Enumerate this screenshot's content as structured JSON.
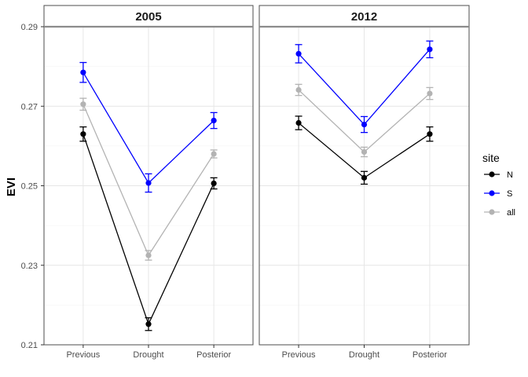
{
  "chart_data": {
    "type": "line",
    "ylabel": "EVI",
    "ylim": [
      0.21,
      0.29
    ],
    "y_ticks": [
      0.21,
      0.23,
      0.25,
      0.27,
      0.29
    ],
    "y_tick_labels": [
      "0.21",
      "0.23",
      "0.25",
      "0.27",
      "0.29"
    ],
    "categories": [
      "Previous",
      "Drought",
      "Posterior"
    ],
    "grid": true,
    "error_bars": true,
    "legend": {
      "title": "site",
      "position": "right"
    },
    "panels": [
      {
        "title": "2005",
        "series": [
          {
            "name": "N",
            "color": "#000000",
            "values": [
              0.263,
              0.2152,
              0.2506
            ],
            "lower": [
              0.2612,
              0.2136,
              0.2492
            ],
            "upper": [
              0.2648,
              0.2168,
              0.252
            ]
          },
          {
            "name": "S",
            "color": "#0000ff",
            "values": [
              0.2785,
              0.2507,
              0.2664
            ],
            "lower": [
              0.276,
              0.2484,
              0.2644
            ],
            "upper": [
              0.281,
              0.253,
              0.2684
            ]
          },
          {
            "name": "all",
            "color": "#b3b3b3",
            "values": [
              0.2705,
              0.2325,
              0.258
            ],
            "lower": [
              0.269,
              0.2313,
              0.257
            ],
            "upper": [
              0.272,
              0.2337,
              0.259
            ]
          }
        ]
      },
      {
        "title": "2012",
        "series": [
          {
            "name": "N",
            "color": "#000000",
            "values": [
              0.2658,
              0.252,
              0.263
            ],
            "lower": [
              0.2641,
              0.2504,
              0.2612
            ],
            "upper": [
              0.2675,
              0.2536,
              0.2648
            ]
          },
          {
            "name": "S",
            "color": "#0000ff",
            "values": [
              0.2832,
              0.2654,
              0.2843
            ],
            "lower": [
              0.2809,
              0.2634,
              0.2822
            ],
            "upper": [
              0.2855,
              0.2674,
              0.2864
            ]
          },
          {
            "name": "all",
            "color": "#b3b3b3",
            "values": [
              0.2741,
              0.2585,
              0.2732
            ],
            "lower": [
              0.2727,
              0.2573,
              0.2717
            ],
            "upper": [
              0.2755,
              0.2597,
              0.2747
            ]
          }
        ]
      }
    ]
  }
}
